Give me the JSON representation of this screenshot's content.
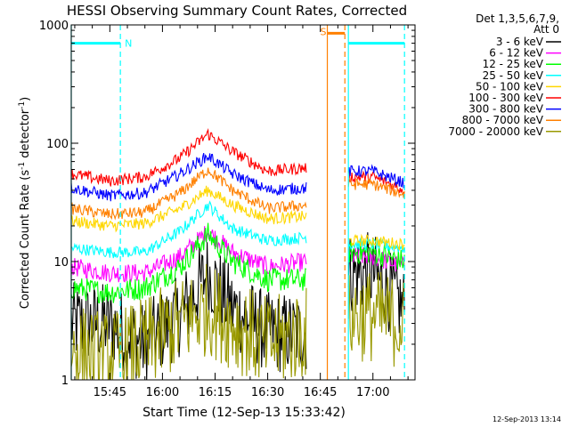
{
  "chart_data": {
    "type": "line",
    "title": "HESSI Observing Summary Count Rates, Corrected",
    "xlabel": "Start Time (12-Sep-13 15:33:42)",
    "ylabel_main": "Corrected Count Rate (s",
    "ylabel_sup1": "-1",
    "ylabel_mid": " detector",
    "ylabel_sup2": "-1",
    "ylabel_end": ")",
    "y_scale": "log",
    "ylim": [
      1,
      1000
    ],
    "xlim": [
      "15:34",
      "17:12"
    ],
    "y_ticks": [
      {
        "value": 1,
        "label": "1"
      },
      {
        "value": 10,
        "label": "10"
      },
      {
        "value": 100,
        "label": "100"
      },
      {
        "value": 1000,
        "label": "1000"
      }
    ],
    "x_ticks": [
      {
        "value": 15.75,
        "label": "15:45"
      },
      {
        "value": 16.0,
        "label": "16:00"
      },
      {
        "value": 16.25,
        "label": "16:15"
      },
      {
        "value": 16.5,
        "label": "16:30"
      },
      {
        "value": 16.75,
        "label": "16:45"
      },
      {
        "value": 17.0,
        "label": "17:00"
      }
    ],
    "legend_header": [
      "Det 1,3,5,6,7,9,",
      "Att 0"
    ],
    "legend_position": "right",
    "footer_date": "12-Sep-2013 13:14",
    "data_gap": [
      "16:47",
      "16:53"
    ],
    "annotations": [
      {
        "label": "N",
        "kind": "night",
        "color": "#00ffff",
        "x_start": "15:34",
        "x_end": "15:48",
        "y": 700
      },
      {
        "label": "S",
        "kind": "saa",
        "color": "#ff8000",
        "x_start": "16:47",
        "x_end": "16:52",
        "y": 850
      },
      {
        "label": "",
        "kind": "night",
        "color": "#00ffff",
        "x_start": "16:53",
        "x_end": "17:09",
        "y": 700
      }
    ],
    "series": [
      {
        "name": "3 - 6 keV",
        "color": "#000000",
        "x": [
          "15:34",
          "15:45",
          "15:55",
          "16:05",
          "16:13",
          "16:20",
          "16:30",
          "16:41",
          "16:47",
          "16:53",
          "17:00",
          "17:09"
        ],
        "values": [
          3,
          3,
          2,
          3.5,
          8,
          4,
          2.5,
          2.5,
          null,
          8,
          8,
          4
        ]
      },
      {
        "name": "6 - 12 keV",
        "color": "#ff00ff",
        "x": [
          "15:34",
          "15:45",
          "15:55",
          "16:05",
          "16:13",
          "16:20",
          "16:30",
          "16:41",
          "16:47",
          "16:53",
          "17:00",
          "17:09"
        ],
        "values": [
          9,
          8,
          8,
          11,
          18,
          12,
          9,
          10,
          null,
          11,
          11,
          9
        ]
      },
      {
        "name": "12 - 25 keV",
        "color": "#00ff00",
        "x": [
          "15:34",
          "15:45",
          "15:55",
          "16:05",
          "16:13",
          "16:20",
          "16:30",
          "16:41",
          "16:47",
          "16:53",
          "17:00",
          "17:09"
        ],
        "values": [
          6,
          5.5,
          6,
          9,
          17,
          10,
          7,
          7,
          null,
          12,
          12,
          10
        ]
      },
      {
        "name": "25 - 50 keV",
        "color": "#00ffff",
        "x": [
          "15:34",
          "15:45",
          "15:55",
          "16:05",
          "16:13",
          "16:20",
          "16:30",
          "16:41",
          "16:47",
          "16:53",
          "17:00",
          "17:09"
        ],
        "values": [
          13,
          12,
          12,
          18,
          30,
          19,
          15,
          16,
          null,
          14,
          14,
          13
        ]
      },
      {
        "name": "50 - 100 keV",
        "color": "#ffd700",
        "x": [
          "15:34",
          "15:45",
          "15:55",
          "16:05",
          "16:13",
          "16:20",
          "16:30",
          "16:41",
          "16:47",
          "16:53",
          "17:00",
          "17:09"
        ],
        "values": [
          22,
          20,
          21,
          28,
          40,
          30,
          23,
          24,
          null,
          15,
          15,
          14
        ]
      },
      {
        "name": "100 - 300 keV",
        "color": "#ff0000",
        "x": [
          "15:34",
          "15:45",
          "15:55",
          "16:05",
          "16:13",
          "16:20",
          "16:30",
          "16:41",
          "16:47",
          "16:53",
          "17:00",
          "17:09"
        ],
        "values": [
          55,
          48,
          52,
          75,
          120,
          85,
          58,
          62,
          null,
          52,
          52,
          40
        ]
      },
      {
        "name": "300 - 800 keV",
        "color": "#0000ff",
        "x": [
          "15:34",
          "15:45",
          "15:55",
          "16:05",
          "16:13",
          "16:20",
          "16:30",
          "16:41",
          "16:47",
          "16:53",
          "17:00",
          "17:09"
        ],
        "values": [
          42,
          36,
          38,
          55,
          78,
          55,
          40,
          42,
          null,
          58,
          58,
          46
        ]
      },
      {
        "name": "800 - 7000 keV",
        "color": "#ff8000",
        "x": [
          "15:34",
          "15:45",
          "15:55",
          "16:05",
          "16:13",
          "16:20",
          "16:30",
          "16:41",
          "16:47",
          "16:53",
          "17:00",
          "17:09"
        ],
        "values": [
          28,
          25,
          26,
          38,
          60,
          40,
          28,
          30,
          null,
          45,
          45,
          37
        ]
      },
      {
        "name": "7000 - 20000 keV",
        "color": "#999900",
        "x": [
          "15:34",
          "15:45",
          "15:55",
          "16:05",
          "16:13",
          "16:20",
          "16:30",
          "16:41",
          "16:47",
          "16:53",
          "17:00",
          "17:09"
        ],
        "values": [
          1.8,
          1.5,
          2,
          3,
          4,
          3,
          2,
          2.5,
          null,
          3.5,
          3.5,
          3
        ]
      }
    ]
  }
}
